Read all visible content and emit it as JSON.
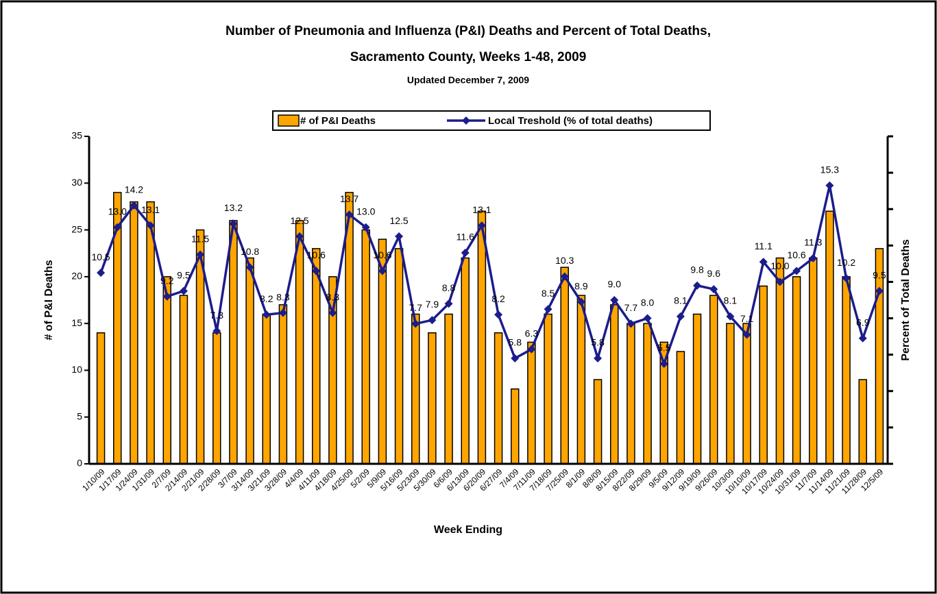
{
  "chart_data": {
    "type": "bar_line",
    "title": "Number of Pneumonia and Influenza (P&I) Deaths and Percent of Total Deaths,",
    "title_line2": "Sacramento County, Weeks 1-48, 2009",
    "subtitle": "Updated December 7, 2009",
    "x_label": "Week Ending",
    "y_label": "# of P&I Deaths",
    "y2_label": "Percent of Total Deaths",
    "categories": [
      "1/10/09",
      "1/17/09",
      "1/24/09",
      "1/31/09",
      "2/7/09",
      "2/14/09",
      "2/21/09",
      "2/28/09",
      "3/7/09",
      "3/14/09",
      "3/21/09",
      "3/28/09",
      "4/4/09",
      "4/11/09",
      "4/18/09",
      "4/25/09",
      "5/2/09",
      "5/9/09",
      "5/16/09",
      "5/23/09",
      "5/30/09",
      "6/6/09",
      "6/13/09",
      "6/20/09",
      "6/27/09",
      "7/4/09",
      "7/11/09",
      "7/18/09",
      "7/25/09",
      "8/1/09",
      "8/8/09",
      "8/15/09",
      "8/22/09",
      "8/29/09",
      "9/5/09",
      "9/12/09",
      "9/19/09",
      "9/26/09",
      "10/3/09",
      "10/10/09",
      "10/17/09",
      "10/24/09",
      "10/31/09",
      "11/7/09",
      "11/14/09",
      "11/21/09",
      "11/28/09",
      "12/5/09"
    ],
    "series": [
      {
        "name": "# of P&I Deaths",
        "color": "#ffa500",
        "values": [
          14,
          29,
          28,
          28,
          20,
          18,
          25,
          14,
          26,
          22,
          16,
          17,
          26,
          23,
          20,
          29,
          25,
          24,
          23,
          16,
          14,
          16,
          22,
          27,
          14,
          8,
          13,
          16,
          21,
          18,
          9,
          17,
          15,
          15,
          13,
          12,
          16,
          18,
          15,
          15,
          19,
          22,
          20,
          22,
          27,
          20,
          9,
          23
        ]
      },
      {
        "name": "Local Treshold (% of total deaths)",
        "color": "#1c1c8c",
        "axis": "y2",
        "values": [
          10.5,
          13.0,
          14.2,
          13.1,
          9.2,
          9.5,
          11.5,
          7.3,
          13.2,
          10.8,
          8.2,
          8.3,
          12.5,
          10.6,
          8.3,
          13.7,
          13.0,
          10.6,
          12.5,
          7.7,
          7.9,
          8.8,
          11.6,
          13.1,
          8.2,
          5.8,
          6.3,
          8.5,
          10.3,
          8.9,
          5.8,
          9.0,
          7.7,
          8.0,
          5.5,
          8.1,
          9.8,
          9.6,
          8.1,
          7.1,
          11.1,
          10.0,
          10.6,
          11.3,
          15.3,
          10.2,
          6.9,
          9.5
        ],
        "value_labels": [
          "10.5",
          "13.0",
          "14.2",
          "13.1",
          "9.2",
          "9.5",
          "11.5",
          "7.3",
          "13.2",
          "10.8",
          "8.2",
          "8.3",
          "12.5",
          "10.6",
          "8.3",
          "13.7",
          "13.0",
          "10.6",
          "12.5",
          "7.7",
          "7.9",
          "8.8",
          "11.6",
          "13.1",
          "8.2",
          "5.8",
          "6.3",
          "8.5",
          "10.3",
          "8.9",
          "5.8",
          "9.0",
          "7.7",
          "8.0",
          "5.5",
          "8.1",
          "9.8",
          "9.6",
          "8.1",
          "7.1",
          "11.1",
          "10.0",
          "10.6",
          "11.3",
          "15.3",
          "10.2",
          "6.9",
          "9.5"
        ]
      }
    ],
    "ylim": [
      0,
      35
    ],
    "yticks": [
      0,
      5,
      10,
      15,
      20,
      25,
      30,
      35
    ],
    "y2lim": [
      0,
      18
    ],
    "y2ticks": [
      0,
      2,
      4,
      6,
      8,
      10,
      12,
      14,
      16,
      18
    ],
    "legend": "top"
  }
}
